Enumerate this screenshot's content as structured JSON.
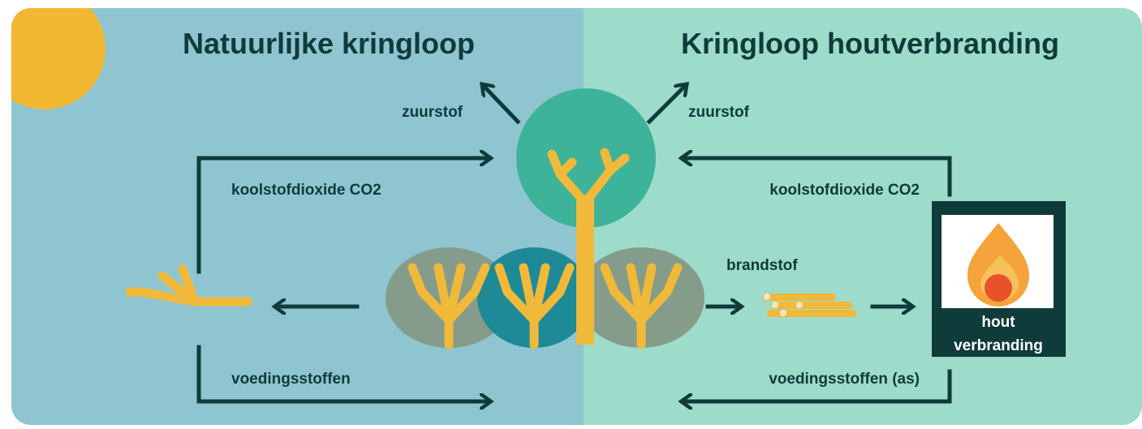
{
  "left": {
    "title": "Natuurlijke kringloop",
    "oxygen": "zuurstof",
    "co2": "koolstofdioxide CO2",
    "nutrients": "voedingsstoffen"
  },
  "right": {
    "title": "Kringloop houtverbranding",
    "oxygen": "zuurstof",
    "co2": "koolstofdioxide CO2",
    "fuel": "brandstof",
    "nutrients": "voedingsstoffen (as)",
    "fire_label": [
      "hout",
      "verbranding"
    ]
  }
}
